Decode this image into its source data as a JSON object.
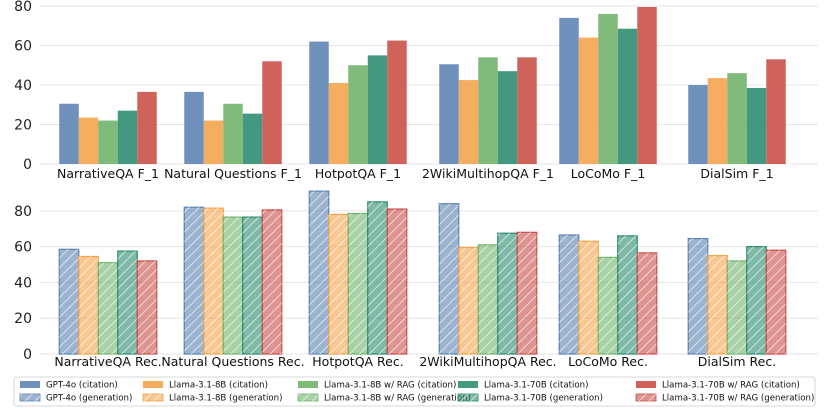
{
  "chart_data": [
    {
      "type": "bar",
      "panel": "top",
      "categories": [
        "NarrativeQA F_1",
        "Natural Questions F_1",
        "HotpotQA F_1",
        "2WikiMultihopQA F_1",
        "LoCoMo F_1",
        "DialSim F_1"
      ],
      "ylim": [
        0,
        80
      ],
      "yticks": [
        "0",
        "20",
        "40",
        "60",
        "80"
      ],
      "grid": true,
      "series": [
        {
          "name": "GPT-4o (citation)",
          "color": "#5b82b3",
          "values": [
            30.5,
            36.5,
            62,
            50.5,
            74,
            40
          ]
        },
        {
          "name": "Llama-3.1-8B (citation)",
          "color": "#f4a24a",
          "values": [
            23.5,
            22,
            41,
            42.5,
            64,
            43.5
          ]
        },
        {
          "name": "Llama-3.1-8B w/ RAG (citation)",
          "color": "#6fb26a",
          "values": [
            22,
            30.5,
            50,
            54,
            76,
            46
          ]
        },
        {
          "name": "Llama-3.1-70B (citation)",
          "color": "#2a8a6e",
          "values": [
            27,
            25.5,
            55,
            47,
            68.5,
            38.5
          ]
        },
        {
          "name": "Llama-3.1-70B w/ RAG (citation)",
          "color": "#c84d46",
          "values": [
            36.5,
            52,
            62.5,
            54,
            79.5,
            53
          ]
        }
      ]
    },
    {
      "type": "bar",
      "panel": "bottom",
      "categories": [
        "NarrativeQA Rec.",
        "Natural Questions Rec.",
        "HotpotQA Rec.",
        "2WikiMultihopQA Rec.",
        "LoCoMo Rec.",
        "DialSim Rec."
      ],
      "ylim": [
        0,
        95
      ],
      "yticks": [
        "0",
        "20",
        "40",
        "60",
        "80"
      ],
      "grid": true,
      "hatched": true,
      "series": [
        {
          "name": "GPT-4o (generation)",
          "color": "#5b82b3",
          "values": [
            58.5,
            82,
            91,
            84,
            66.5,
            64.5
          ]
        },
        {
          "name": "Llama-3.1-8B (generation)",
          "color": "#f4a24a",
          "values": [
            54.5,
            81.5,
            78,
            59.5,
            63,
            55
          ]
        },
        {
          "name": "Llama-3.1-8B w/ RAG (generation)",
          "color": "#6fb26a",
          "values": [
            51,
            76.5,
            78.5,
            61,
            54,
            52
          ]
        },
        {
          "name": "Llama-3.1-70B (generation)",
          "color": "#2a8a6e",
          "values": [
            57.5,
            76.5,
            85,
            67.5,
            66,
            60
          ]
        },
        {
          "name": "Llama-3.1-70B w/ RAG (generation)",
          "color": "#c84d46",
          "values": [
            52,
            80.5,
            81,
            68,
            56.5,
            58
          ]
        }
      ]
    }
  ],
  "legend": {
    "placement": "bottom",
    "columns": [
      [
        "GPT-4o (citation)",
        "GPT-4o (generation)"
      ],
      [
        "Llama-3.1-8B (citation)",
        "Llama-3.1-8B (generation)"
      ],
      [
        "Llama-3.1-8B w/ RAG (citation)",
        "Llama-3.1-8B w/ RAG (generation)"
      ],
      [
        "Llama-3.1-70B (citation)",
        "Llama-3.1-70B (generation)"
      ],
      [
        "Llama-3.1-70B w/ RAG (citation)",
        "Llama-3.1-70B w/ RAG (generation)"
      ]
    ]
  }
}
